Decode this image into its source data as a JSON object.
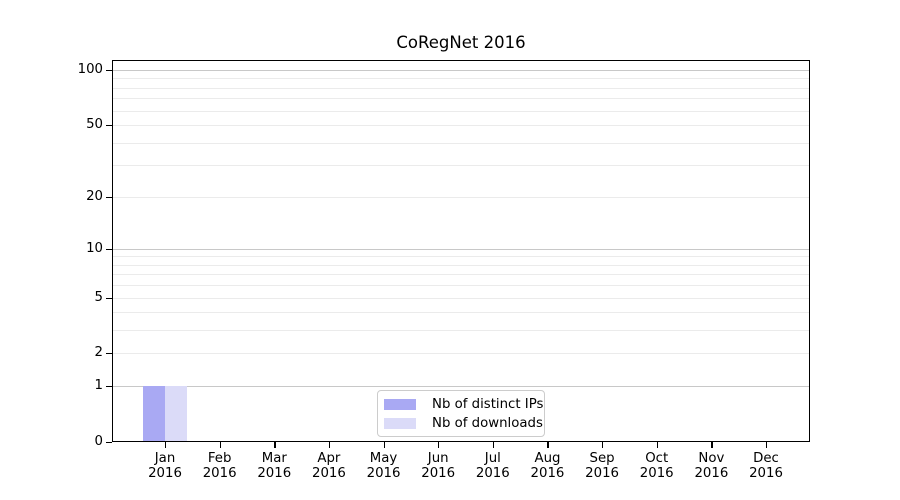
{
  "chart_data": {
    "type": "bar",
    "title": "CoRegNet 2016",
    "x_axis": {
      "months": [
        "Jan",
        "Feb",
        "Mar",
        "Apr",
        "May",
        "Jun",
        "Jul",
        "Aug",
        "Sep",
        "Oct",
        "Nov",
        "Dec"
      ],
      "year": "2016"
    },
    "categories": [
      "Jan 2016",
      "Feb 2016",
      "Mar 2016",
      "Apr 2016",
      "May 2016",
      "Jun 2016",
      "Jul 2016",
      "Aug 2016",
      "Sep 2016",
      "Oct 2016",
      "Nov 2016",
      "Dec 2016"
    ],
    "series": [
      {
        "name": "Nb of distinct IPs",
        "color": "#a9a9f3",
        "values": [
          1,
          0,
          0,
          0,
          0,
          0,
          0,
          0,
          0,
          0,
          0,
          0
        ]
      },
      {
        "name": "Nb of downloads",
        "color": "#dbdbf8",
        "values": [
          1,
          0,
          0,
          0,
          0,
          0,
          0,
          0,
          0,
          0,
          0,
          0
        ]
      }
    ],
    "y_axis": {
      "scale": "log1p",
      "tick_values": [
        0,
        1,
        2,
        5,
        10,
        20,
        50,
        100
      ],
      "tick_labels": [
        "0",
        "1",
        "2",
        "5",
        "10",
        "20",
        "50",
        "100"
      ],
      "major_grid_values": [
        1,
        10,
        100
      ],
      "minor_grid_values": [
        2,
        3,
        4,
        5,
        6,
        7,
        8,
        9,
        20,
        30,
        40,
        50,
        60,
        70,
        80,
        90
      ],
      "range": [
        0,
        113
      ]
    },
    "legend": {
      "position": "inside bottom-center",
      "entries": [
        "Nb of distinct IPs",
        "Nb of downloads"
      ]
    },
    "grid": true,
    "colors": {
      "major_grid": "#c8c8c8",
      "minor_grid": "#ebebeb",
      "axis": "#000000",
      "legend_border": "#cccccc",
      "background": "#ffffff"
    }
  }
}
